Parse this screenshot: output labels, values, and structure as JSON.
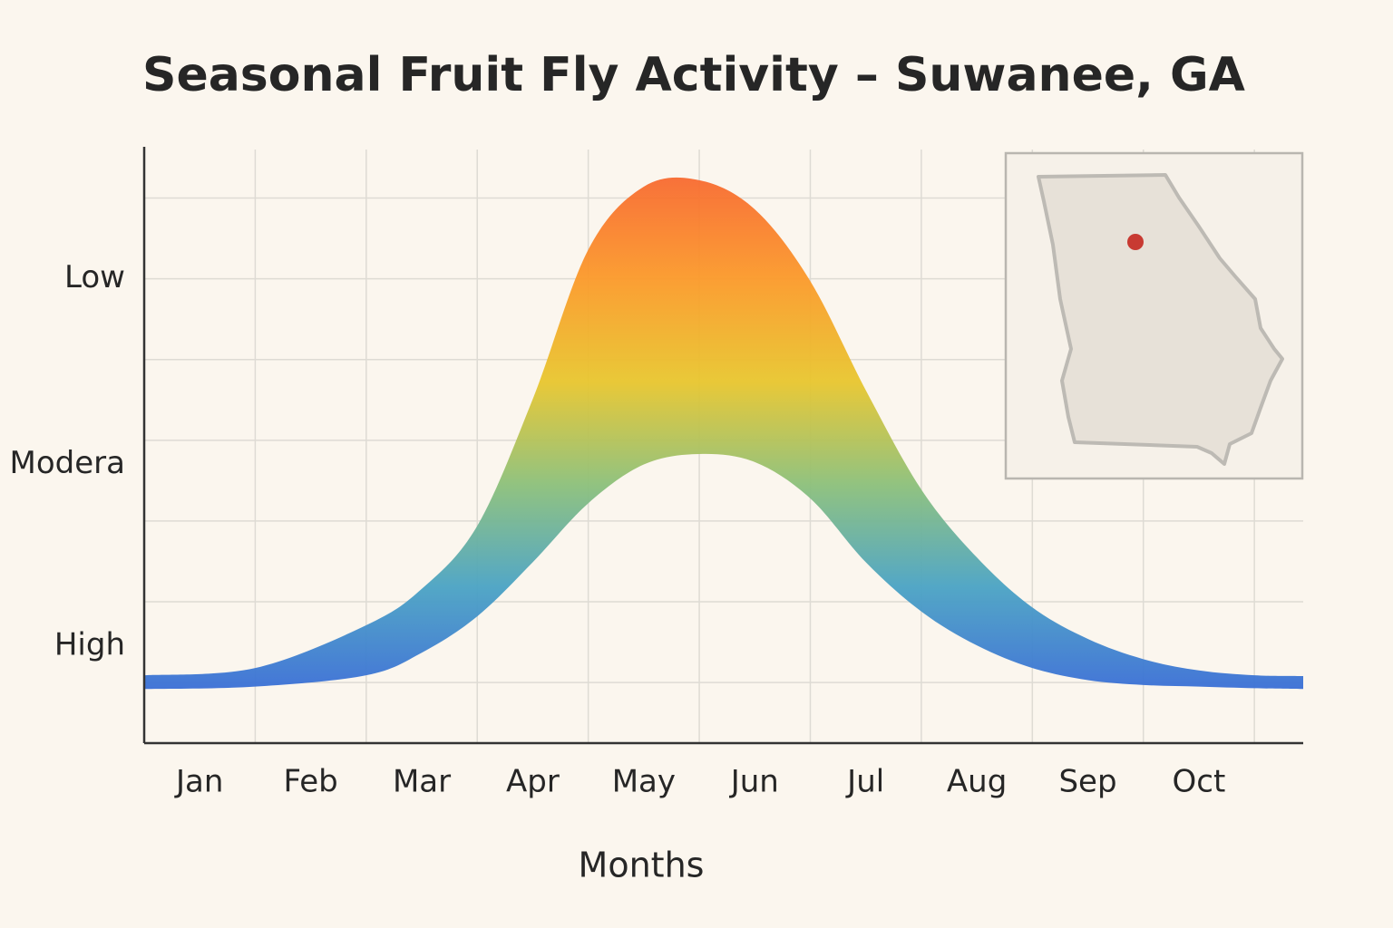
{
  "chart_data": {
    "type": "band",
    "title": "Seasonal Fruit Fly Activity – Suwanee, GA",
    "x_label": "Months",
    "xlim": [
      0,
      10.44
    ],
    "xticks": [
      {
        "value": 0.5,
        "label": "Jan"
      },
      {
        "value": 1.5,
        "label": "Feb"
      },
      {
        "value": 2.5,
        "label": "Mar"
      },
      {
        "value": 3.5,
        "label": "Apr"
      },
      {
        "value": 4.5,
        "label": "May"
      },
      {
        "value": 5.5,
        "label": "Jun"
      },
      {
        "value": 6.5,
        "label": "Jul"
      },
      {
        "value": 7.5,
        "label": "Aug"
      },
      {
        "value": 8.5,
        "label": "Sep"
      },
      {
        "value": 9.5,
        "label": "Oct"
      }
    ],
    "xgrid": [
      1,
      2,
      3,
      4,
      5,
      6,
      7,
      8,
      9,
      10
    ],
    "ylim": [
      0,
      7.35
    ],
    "yticks": [
      {
        "value": 5.75,
        "label": "Low"
      },
      {
        "value": 3.45,
        "label": "Modera"
      },
      {
        "value": 1.2,
        "label": "High"
      }
    ],
    "ygrid": [
      0.75,
      1.75,
      2.75,
      3.75,
      4.75,
      5.75,
      6.75
    ],
    "grid": true,
    "x": [
      0,
      1,
      2,
      2.5,
      3,
      3.5,
      4,
      4.5,
      5,
      5.5,
      6,
      6.5,
      7,
      7.5,
      8,
      8.5,
      9,
      9.5,
      10,
      10.44
    ],
    "upper": [
      0.84,
      0.93,
      1.46,
      1.91,
      2.69,
      4.26,
      6.11,
      6.89,
      6.97,
      6.61,
      5.72,
      4.37,
      3.14,
      2.3,
      1.68,
      1.29,
      1.04,
      0.9,
      0.84,
      0.83
    ],
    "lower": [
      0.67,
      0.7,
      0.84,
      1.12,
      1.57,
      2.24,
      2.97,
      3.45,
      3.58,
      3.48,
      3.03,
      2.24,
      1.63,
      1.21,
      0.93,
      0.78,
      0.72,
      0.7,
      0.68,
      0.67
    ],
    "gradient": [
      "#3a6fd6",
      "#4aa3c4",
      "#8cc07a",
      "#e8c62e",
      "#fb9a2a",
      "#f86a30"
    ]
  }
}
